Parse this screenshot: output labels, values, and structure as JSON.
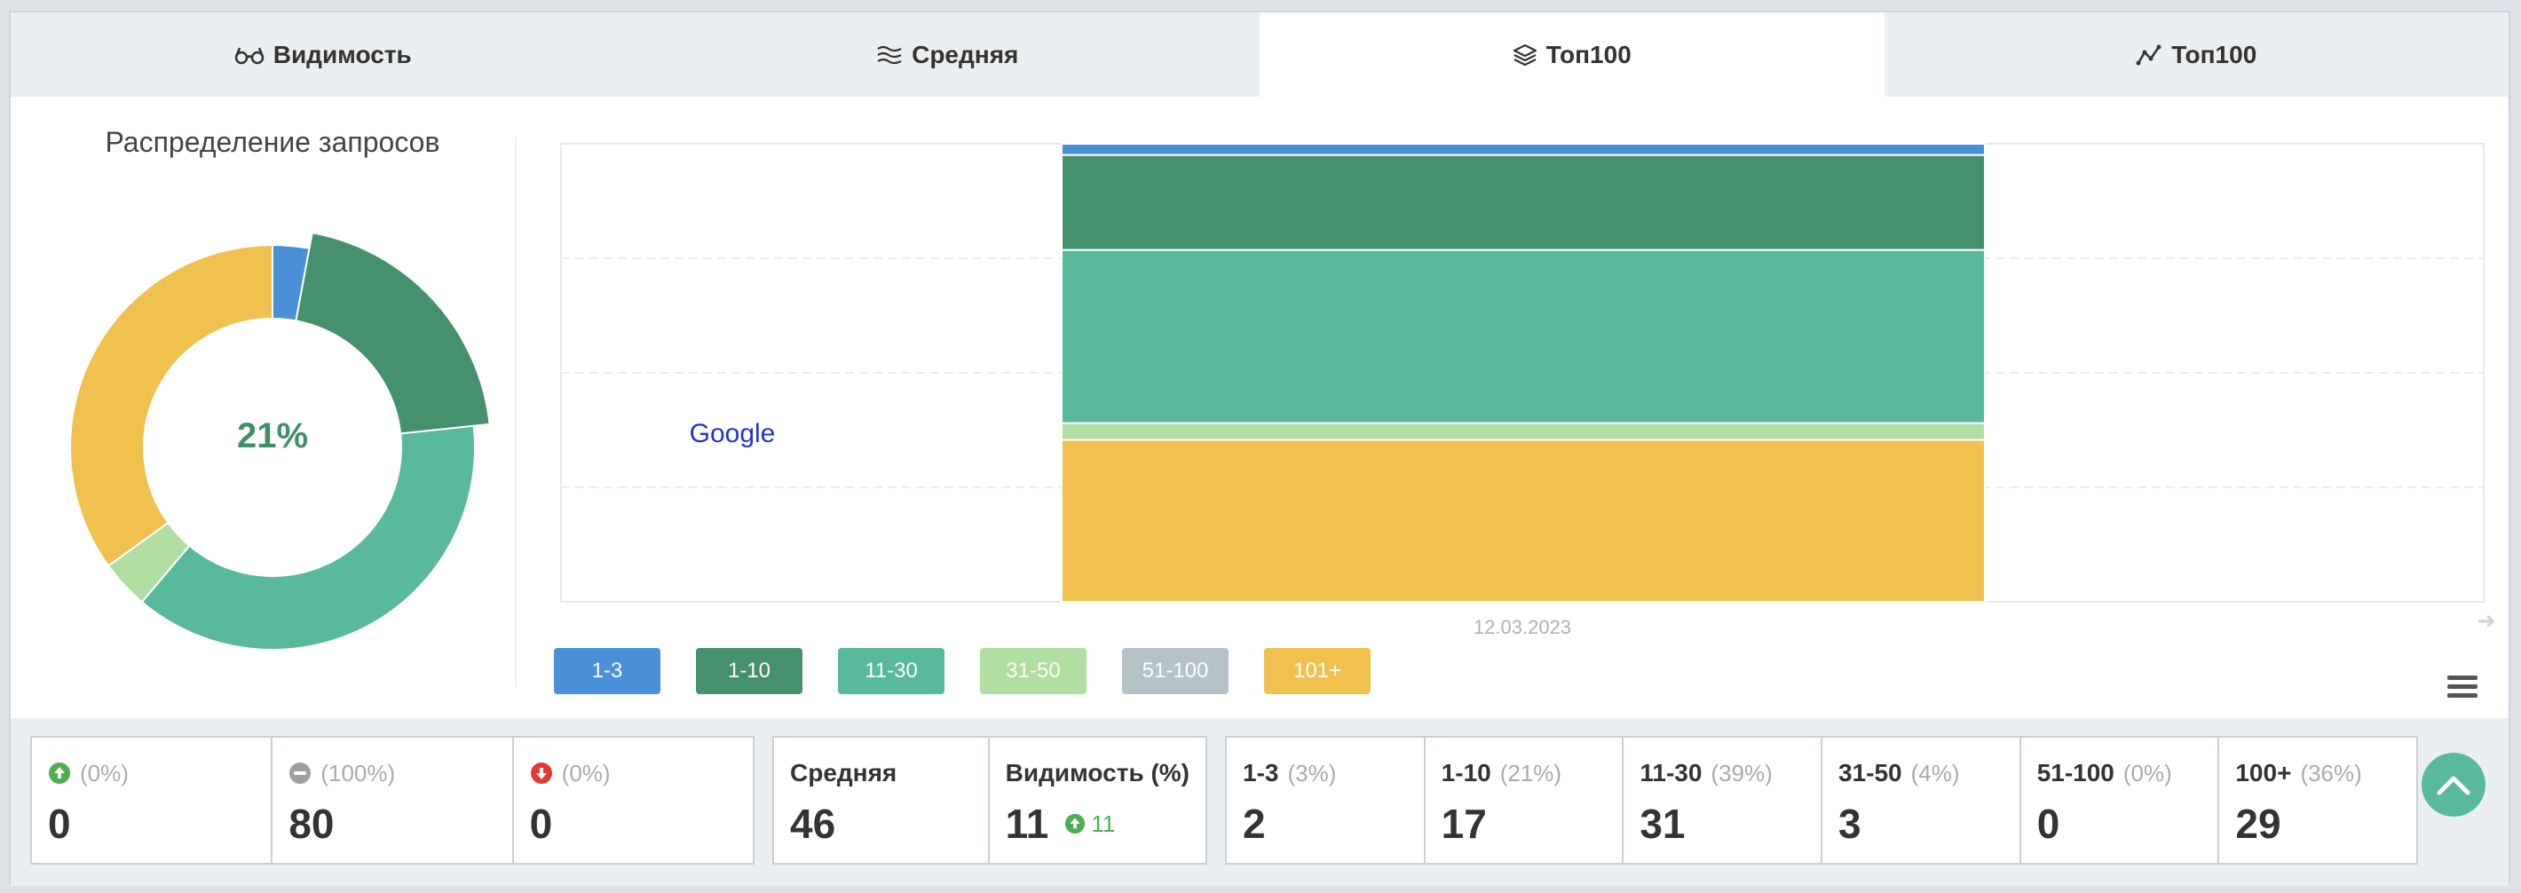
{
  "tabs": [
    {
      "label": "Видимость",
      "icon": "glasses-icon",
      "active": false
    },
    {
      "label": "Средняя",
      "icon": "waves-icon",
      "active": false
    },
    {
      "label": "Топ100",
      "icon": "layers-icon",
      "active": true
    },
    {
      "label": "Топ100",
      "icon": "line-chart-icon",
      "active": false
    }
  ],
  "donut": {
    "title": "Распределение запросов",
    "center_label": "21%",
    "center_color": "#3f8f68"
  },
  "chart": {
    "engine_label": "Google",
    "date_label": "12.03.2023"
  },
  "legend": [
    {
      "label": "1-3",
      "color": "#4a90d9"
    },
    {
      "label": "1-10",
      "color": "#45916d"
    },
    {
      "label": "11-30",
      "color": "#58b99c"
    },
    {
      "label": "31-50",
      "color": "#b0dea0"
    },
    {
      "label": "51-100",
      "color": "#b4c3c6"
    },
    {
      "label": "101+",
      "color": "#f0c14f"
    }
  ],
  "chart_data": {
    "type": "bar",
    "categories": [
      "12.03.2023"
    ],
    "series": [
      {
        "name": "1-3",
        "values": [
          2
        ],
        "color": "#4a90d9"
      },
      {
        "name": "1-10",
        "values": [
          17
        ],
        "color": "#45916d"
      },
      {
        "name": "11-30",
        "values": [
          31
        ],
        "color": "#58b99c"
      },
      {
        "name": "31-50",
        "values": [
          3
        ],
        "color": "#b0dea0"
      },
      {
        "name": "51-100",
        "values": [
          0
        ],
        "color": "#b4c3c6"
      },
      {
        "name": "101+",
        "values": [
          29
        ],
        "color": "#f0c14f"
      }
    ],
    "pie": [
      {
        "name": "1-3",
        "value": 3,
        "color": "#4a90d9"
      },
      {
        "name": "1-10",
        "value": 21,
        "color": "#45916d"
      },
      {
        "name": "11-30",
        "value": 39,
        "color": "#58b99c"
      },
      {
        "name": "31-50",
        "value": 4,
        "color": "#b0dea0"
      },
      {
        "name": "51-100",
        "value": 0,
        "color": "#b4c3c6"
      },
      {
        "name": "101+",
        "value": 36,
        "color": "#f0c14f"
      }
    ],
    "highlighted_slice": "1-10",
    "stacked": true,
    "grid": true
  },
  "stats": {
    "up": {
      "pct": "(0%)",
      "value": "0",
      "icon": "arrow-up-circle-icon"
    },
    "same": {
      "pct": "(100%)",
      "value": "80",
      "icon": "minus-circle-icon"
    },
    "down": {
      "pct": "(0%)",
      "value": "0",
      "icon": "arrow-down-circle-icon"
    },
    "average": {
      "label": "Средняя",
      "value": "46"
    },
    "visibility": {
      "label": "Видимость (%)",
      "value": "11",
      "delta": "11"
    },
    "ranges": [
      {
        "label": "1-3",
        "pct": "(3%)",
        "value": "2"
      },
      {
        "label": "1-10",
        "pct": "(21%)",
        "value": "17"
      },
      {
        "label": "11-30",
        "pct": "(39%)",
        "value": "31"
      },
      {
        "label": "31-50",
        "pct": "(4%)",
        "value": "3"
      },
      {
        "label": "51-100",
        "pct": "(0%)",
        "value": "0"
      },
      {
        "label": "100+",
        "pct": "(36%)",
        "value": "29"
      }
    ]
  }
}
